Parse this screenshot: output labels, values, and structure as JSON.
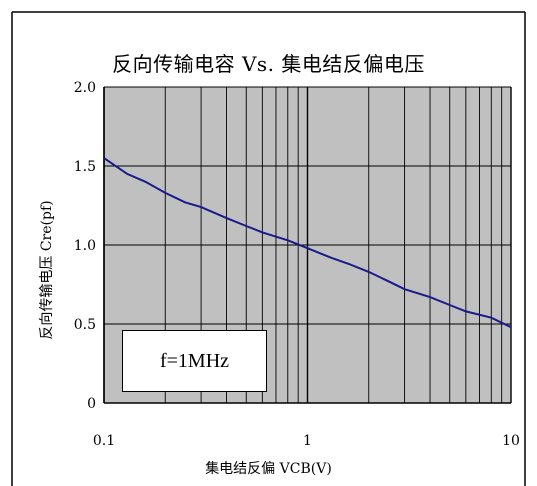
{
  "chart_data": {
    "type": "line",
    "title": "反向传输电容 Vs. 集电结反偏电压",
    "xlabel": "集电结反偏 VCB(V)",
    "ylabel": "反向传输电压 Cre(pf)",
    "x_scale": "log",
    "xlim": [
      0.1,
      10
    ],
    "ylim": [
      0,
      2.0
    ],
    "x_ticks": [
      "0.1",
      "1",
      "10"
    ],
    "y_ticks": [
      "2.0",
      "1.5",
      "1.0",
      "0.5",
      "0"
    ],
    "grid": true,
    "series": [
      {
        "color": "#1a1a8c",
        "x": [
          0.1,
          0.13,
          0.16,
          0.2,
          0.25,
          0.3,
          0.4,
          0.5,
          0.6,
          0.8,
          1.0,
          1.3,
          1.6,
          2.0,
          2.5,
          3.0,
          4.0,
          5.0,
          6.0,
          8.0,
          10.0
        ],
        "y": [
          1.55,
          1.45,
          1.4,
          1.33,
          1.27,
          1.24,
          1.17,
          1.12,
          1.08,
          1.03,
          0.98,
          0.92,
          0.88,
          0.83,
          0.77,
          0.72,
          0.67,
          0.62,
          0.58,
          0.54,
          0.48
        ]
      }
    ],
    "annotation": "f=1MHz"
  },
  "colors": {
    "plot_background": "#c0c0c0",
    "grid": "#000000",
    "curve": "#1a1a8c"
  }
}
